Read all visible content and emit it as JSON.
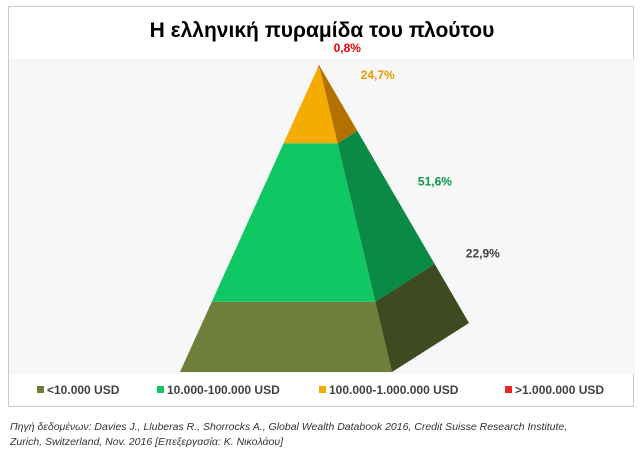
{
  "chart_data": {
    "type": "pyramid",
    "title": "Η ελληνική πυραμίδα του πλούτου",
    "categories": [
      "<10.000 USD",
      "10.000-100.000 USD",
      "100.000-1.000.000 USD",
      ">1.000.000 USD"
    ],
    "values": [
      22.9,
      51.6,
      24.7,
      0.8
    ],
    "value_labels": [
      "22,9%",
      "51,6%",
      "24,7%",
      "0,8%"
    ],
    "colors": {
      "front": [
        "#6e7f3b",
        "#0fc864",
        "#f5ab00",
        "#e8252a"
      ],
      "side": [
        "#3e4a1f",
        "#0a8a45",
        "#b37100",
        "#a31518"
      ],
      "label": [
        "#404040",
        "#0a9a4a",
        "#e69a00",
        "#e00000"
      ]
    },
    "legend": "bottom"
  },
  "source": {
    "line1": "Πηγή δεδομένων: Davies J., Lluberas R., Shorrocks A., Global Wealth Databook 2016, Credit Suisse Research Institute,",
    "line2": "Zurich, Switzerland, Nov. 2016   [Επεξεργασία: Κ. Νικολάου]"
  }
}
